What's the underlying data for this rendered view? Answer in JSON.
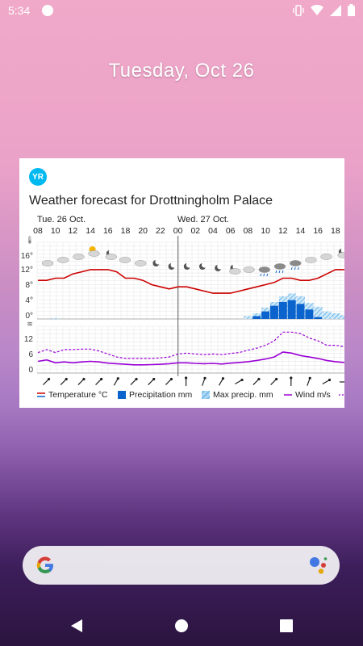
{
  "status": {
    "time": "5:34",
    "icons": [
      "app-notification-icon",
      "vibrate-icon",
      "wifi-icon",
      "signal-icon",
      "battery-icon"
    ]
  },
  "lockscreen": {
    "date": "Tuesday, Oct 26"
  },
  "widget": {
    "logo_text": "YR",
    "title": "Weather forecast for Drottningholm Palace",
    "day1": "Tue. 26 Oct.",
    "day2": "Wed. 27 Oct.",
    "hours": [
      "08",
      "10",
      "12",
      "14",
      "16",
      "18",
      "20",
      "22",
      "00",
      "02",
      "04",
      "06",
      "08",
      "10",
      "12",
      "14",
      "16",
      "18"
    ],
    "temp_ticks": [
      "16°",
      "12°",
      "8°",
      "4°",
      "0°"
    ],
    "wind_ticks": [
      "12",
      "6",
      "6",
      "0"
    ],
    "legend": {
      "temperature": "Temperature °C",
      "precipitation": "Precipitation mm",
      "max_precip": "Max precip. mm",
      "wind": "Wind m/s"
    },
    "colors": {
      "temperature": "#cc0000",
      "precipitation": "#0b63ce",
      "max_precip": "#6fb8e8",
      "wind": "#9a00d6",
      "logo": "#00b9f1"
    }
  },
  "chart_data": [
    {
      "type": "line",
      "x": [
        "08",
        "09",
        "10",
        "11",
        "12",
        "13",
        "14",
        "15",
        "16",
        "17",
        "18",
        "19",
        "20",
        "21",
        "22",
        "23",
        "00",
        "01",
        "02",
        "03",
        "04",
        "05",
        "06",
        "07",
        "08",
        "09",
        "10",
        "11",
        "12",
        "13",
        "14",
        "15",
        "16",
        "17",
        "18",
        "19"
      ],
      "series": [
        {
          "name": "Temperature °C",
          "values": [
            9,
            9,
            9.5,
            9.5,
            10.5,
            11,
            11.5,
            11.5,
            11.5,
            11,
            9.5,
            9.5,
            9,
            8,
            7.5,
            7,
            7.5,
            7.5,
            7,
            6.5,
            6,
            6,
            6,
            6.5,
            7,
            7.5,
            8,
            8.5,
            9.5,
            9.5,
            9,
            9,
            9.5,
            10.5,
            11.5,
            11.5
          ]
        },
        {
          "name": "Precipitation mm",
          "values": [
            0,
            0,
            0,
            0,
            0,
            0,
            0,
            0,
            0,
            0,
            0,
            0,
            0,
            0,
            0,
            0,
            0,
            0,
            0,
            0,
            0,
            0,
            0,
            0,
            0,
            0.3,
            0.8,
            1.4,
            1.8,
            2.0,
            1.6,
            1.0,
            0.2,
            0,
            0,
            0
          ]
        },
        {
          "name": "Max precip. mm",
          "values": [
            0,
            0,
            0.1,
            0,
            0,
            0,
            0,
            0,
            0,
            0,
            0,
            0,
            0,
            0,
            0,
            0,
            0,
            0,
            0,
            0,
            0,
            0,
            0,
            0,
            0.3,
            0.6,
            1.2,
            1.8,
            2.4,
            2.7,
            2.4,
            1.7,
            1.3,
            0.8,
            0.6,
            0.4
          ]
        }
      ],
      "ylim": [
        0,
        16
      ]
    },
    {
      "type": "line",
      "x": [
        "08",
        "09",
        "10",
        "11",
        "12",
        "13",
        "14",
        "15",
        "16",
        "17",
        "18",
        "19",
        "20",
        "21",
        "22",
        "23",
        "00",
        "01",
        "02",
        "03",
        "04",
        "05",
        "06",
        "07",
        "08",
        "09",
        "10",
        "11",
        "12",
        "13",
        "14",
        "15",
        "16",
        "17",
        "18",
        "19"
      ],
      "series": [
        {
          "name": "Wind m/s",
          "values": [
            4,
            4.5,
            3.5,
            3.8,
            3.5,
            3.8,
            4,
            3.8,
            3.4,
            3.2,
            3,
            2.8,
            2.8,
            2.9,
            3,
            3.2,
            3.5,
            3.5,
            3.3,
            3.2,
            3.3,
            3.1,
            3.4,
            3.6,
            3.9,
            4.3,
            4.8,
            5.5,
            7.2,
            6.8,
            6,
            5.5,
            5,
            4.3,
            3.9,
            3.6
          ]
        },
        {
          "name": "",
          "values": [
            7,
            8,
            7,
            8,
            8,
            8.2,
            8.2,
            7.5,
            6.5,
            5.5,
            5,
            5,
            5,
            5,
            5.2,
            5.5,
            6.5,
            6.8,
            6.5,
            6.3,
            6.5,
            6.3,
            6.7,
            7,
            7.8,
            8.5,
            9.5,
            11,
            14,
            14,
            13.5,
            12,
            11,
            9.5,
            9.5,
            9
          ]
        }
      ],
      "ylim": [
        0,
        16
      ]
    }
  ]
}
